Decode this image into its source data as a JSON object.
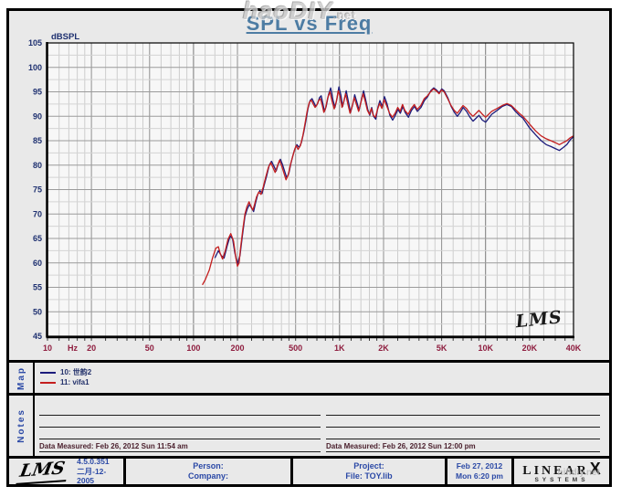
{
  "watermark_top": {
    "text": "haoDIY",
    "suffix": ".net"
  },
  "title": "SPL vs Freq",
  "chart_data": {
    "type": "line",
    "title": "SPL vs Freq",
    "ylabel": "dBSPL",
    "xunit": "Hz",
    "xscale": "log",
    "xlim": [
      10,
      40000
    ],
    "ylim": [
      45,
      105
    ],
    "y_major_step": 5,
    "y_minor_step": 2.5,
    "grid": "on",
    "legend_position": "map-panel-below",
    "plot_signature": "LMS",
    "xticks": [
      {
        "f": 10,
        "label": "10"
      },
      {
        "f": 20,
        "label": "20"
      },
      {
        "f": 50,
        "label": "50"
      },
      {
        "f": 100,
        "label": "100"
      },
      {
        "f": 200,
        "label": "200"
      },
      {
        "f": 500,
        "label": "500"
      },
      {
        "f": 1000,
        "label": "1K"
      },
      {
        "f": 2000,
        "label": "2K"
      },
      {
        "f": 5000,
        "label": "5K"
      },
      {
        "f": 10000,
        "label": "10K"
      },
      {
        "f": 20000,
        "label": "20K"
      },
      {
        "f": 40000,
        "label": "40K"
      }
    ],
    "series": [
      {
        "name": "10: 世韵2",
        "color": "#1c1c7c",
        "points": [
          [
            140,
            61
          ],
          [
            148,
            62.5
          ],
          [
            155,
            61.5
          ],
          [
            162,
            61
          ],
          [
            170,
            63.5
          ],
          [
            178,
            65.5
          ],
          [
            185,
            65
          ],
          [
            192,
            62
          ],
          [
            200,
            59.8
          ],
          [
            208,
            61.5
          ],
          [
            216,
            65.5
          ],
          [
            225,
            69.5
          ],
          [
            233,
            71
          ],
          [
            242,
            72
          ],
          [
            250,
            71.2
          ],
          [
            258,
            70.5
          ],
          [
            266,
            72.3
          ],
          [
            275,
            74
          ],
          [
            285,
            74.8
          ],
          [
            295,
            74.2
          ],
          [
            305,
            76
          ],
          [
            318,
            78
          ],
          [
            330,
            80
          ],
          [
            342,
            80.8
          ],
          [
            355,
            79.8
          ],
          [
            368,
            78.8
          ],
          [
            380,
            80.2
          ],
          [
            393,
            81.2
          ],
          [
            406,
            80.2
          ],
          [
            420,
            78.8
          ],
          [
            435,
            77.4
          ],
          [
            450,
            78.4
          ],
          [
            465,
            80.4
          ],
          [
            480,
            82
          ],
          [
            495,
            83.4
          ],
          [
            510,
            84.2
          ],
          [
            528,
            83.6
          ],
          [
            548,
            84.6
          ],
          [
            568,
            86.6
          ],
          [
            588,
            89
          ],
          [
            608,
            91.6
          ],
          [
            628,
            93.2
          ],
          [
            648,
            93.6
          ],
          [
            668,
            92.8
          ],
          [
            688,
            92
          ],
          [
            708,
            92.6
          ],
          [
            728,
            93.8
          ],
          [
            748,
            94.2
          ],
          [
            768,
            92.6
          ],
          [
            788,
            91
          ],
          [
            810,
            92
          ],
          [
            840,
            94.4
          ],
          [
            870,
            95.8
          ],
          [
            900,
            93.4
          ],
          [
            930,
            91.8
          ],
          [
            960,
            93.6
          ],
          [
            990,
            96
          ],
          [
            1020,
            94.4
          ],
          [
            1050,
            92
          ],
          [
            1080,
            93.6
          ],
          [
            1110,
            95.2
          ],
          [
            1150,
            93
          ],
          [
            1190,
            90.8
          ],
          [
            1230,
            92.4
          ],
          [
            1270,
            94.4
          ],
          [
            1310,
            93
          ],
          [
            1360,
            91.2
          ],
          [
            1410,
            93.4
          ],
          [
            1460,
            95.2
          ],
          [
            1510,
            93.4
          ],
          [
            1560,
            91.4
          ],
          [
            1610,
            90.2
          ],
          [
            1660,
            91.8
          ],
          [
            1710,
            90
          ],
          [
            1770,
            89.4
          ],
          [
            1830,
            91.8
          ],
          [
            1890,
            93.2
          ],
          [
            1960,
            92
          ],
          [
            2030,
            94
          ],
          [
            2110,
            92.6
          ],
          [
            2210,
            90.2
          ],
          [
            2310,
            89.2
          ],
          [
            2410,
            90.2
          ],
          [
            2510,
            91.4
          ],
          [
            2610,
            90.6
          ],
          [
            2710,
            92
          ],
          [
            2810,
            90.8
          ],
          [
            2960,
            89.8
          ],
          [
            3110,
            91.2
          ],
          [
            3260,
            92
          ],
          [
            3410,
            91
          ],
          [
            3610,
            91.8
          ],
          [
            3810,
            93.2
          ],
          [
            4010,
            94
          ],
          [
            4210,
            95.2
          ],
          [
            4410,
            95.8
          ],
          [
            4610,
            95.4
          ],
          [
            4810,
            94.8
          ],
          [
            5010,
            95.6
          ],
          [
            5210,
            95.2
          ],
          [
            5510,
            93.8
          ],
          [
            5810,
            92
          ],
          [
            6110,
            90.8
          ],
          [
            6410,
            90
          ],
          [
            6710,
            90.8
          ],
          [
            7010,
            91.8
          ],
          [
            7410,
            91
          ],
          [
            7810,
            89.8
          ],
          [
            8210,
            89
          ],
          [
            8610,
            89.6
          ],
          [
            9010,
            90.2
          ],
          [
            9510,
            89.2
          ],
          [
            10010,
            88.8
          ],
          [
            10510,
            89.6
          ],
          [
            11010,
            90.4
          ],
          [
            12010,
            91.2
          ],
          [
            13010,
            92
          ],
          [
            14010,
            92.4
          ],
          [
            15010,
            92
          ],
          [
            16010,
            91
          ],
          [
            17010,
            90.2
          ],
          [
            18010,
            89.6
          ],
          [
            19010,
            88.6
          ],
          [
            20010,
            87.6
          ],
          [
            22010,
            86.2
          ],
          [
            24010,
            85
          ],
          [
            26010,
            84.2
          ],
          [
            28010,
            83.8
          ],
          [
            30010,
            83.4
          ],
          [
            32010,
            83
          ],
          [
            34010,
            83.6
          ],
          [
            36010,
            84.2
          ],
          [
            38010,
            85.2
          ],
          [
            40000,
            85.8
          ]
        ]
      },
      {
        "name": "11: vifa1",
        "color": "#c41e1e",
        "points": [
          [
            115,
            55.5
          ],
          [
            120,
            56.5
          ],
          [
            128,
            58.5
          ],
          [
            135,
            61
          ],
          [
            142,
            63
          ],
          [
            148,
            63.3
          ],
          [
            152,
            62
          ],
          [
            158,
            60.8
          ],
          [
            165,
            62.5
          ],
          [
            172,
            64.8
          ],
          [
            180,
            66
          ],
          [
            188,
            64.5
          ],
          [
            195,
            61
          ],
          [
            200,
            59.3
          ],
          [
            205,
            60
          ],
          [
            210,
            63
          ],
          [
            218,
            67
          ],
          [
            225,
            70
          ],
          [
            232,
            71.5
          ],
          [
            240,
            72.5
          ],
          [
            248,
            71.5
          ],
          [
            255,
            70.8
          ],
          [
            262,
            72
          ],
          [
            270,
            73.5
          ],
          [
            280,
            74.5
          ],
          [
            290,
            74
          ],
          [
            300,
            75.5
          ],
          [
            312,
            77.5
          ],
          [
            325,
            79.5
          ],
          [
            338,
            80.5
          ],
          [
            350,
            79.5
          ],
          [
            362,
            78.5
          ],
          [
            375,
            79.8
          ],
          [
            388,
            81
          ],
          [
            400,
            80
          ],
          [
            415,
            78.5
          ],
          [
            430,
            77
          ],
          [
            445,
            78
          ],
          [
            460,
            80
          ],
          [
            475,
            81.5
          ],
          [
            490,
            83
          ],
          [
            505,
            84
          ],
          [
            520,
            83.2
          ],
          [
            540,
            84
          ],
          [
            560,
            86
          ],
          [
            580,
            88.5
          ],
          [
            600,
            91
          ],
          [
            620,
            92.8
          ],
          [
            640,
            93.3
          ],
          [
            660,
            92.5
          ],
          [
            680,
            91.8
          ],
          [
            700,
            92.3
          ],
          [
            720,
            93.2
          ],
          [
            740,
            93.6
          ],
          [
            760,
            92.3
          ],
          [
            780,
            90.8
          ],
          [
            800,
            91.5
          ],
          [
            830,
            93.8
          ],
          [
            860,
            95
          ],
          [
            890,
            93
          ],
          [
            920,
            91.5
          ],
          [
            950,
            93
          ],
          [
            980,
            95.2
          ],
          [
            1010,
            94
          ],
          [
            1040,
            91.8
          ],
          [
            1070,
            93
          ],
          [
            1100,
            94.6
          ],
          [
            1140,
            92.5
          ],
          [
            1180,
            90.6
          ],
          [
            1220,
            92
          ],
          [
            1260,
            93.8
          ],
          [
            1300,
            92.6
          ],
          [
            1350,
            91
          ],
          [
            1400,
            92.8
          ],
          [
            1450,
            94.6
          ],
          [
            1500,
            93
          ],
          [
            1550,
            91.2
          ],
          [
            1600,
            90.4
          ],
          [
            1650,
            91.6
          ],
          [
            1700,
            90.2
          ],
          [
            1760,
            89.8
          ],
          [
            1820,
            91.4
          ],
          [
            1880,
            92.6
          ],
          [
            1950,
            91.6
          ],
          [
            2020,
            93.4
          ],
          [
            2100,
            92.2
          ],
          [
            2200,
            90.6
          ],
          [
            2300,
            89.8
          ],
          [
            2400,
            90.6
          ],
          [
            2500,
            91.8
          ],
          [
            2600,
            91
          ],
          [
            2700,
            92.4
          ],
          [
            2800,
            91.2
          ],
          [
            2950,
            90.4
          ],
          [
            3100,
            91.6
          ],
          [
            3250,
            92.4
          ],
          [
            3400,
            91.4
          ],
          [
            3600,
            92.2
          ],
          [
            3800,
            93.6
          ],
          [
            4000,
            94.2
          ],
          [
            4200,
            95
          ],
          [
            4400,
            95.6
          ],
          [
            4600,
            95.2
          ],
          [
            4800,
            94.6
          ],
          [
            5000,
            95.4
          ],
          [
            5200,
            95
          ],
          [
            5500,
            93.6
          ],
          [
            5800,
            92.2
          ],
          [
            6100,
            91.2
          ],
          [
            6400,
            90.6
          ],
          [
            6700,
            91.4
          ],
          [
            7000,
            92.2
          ],
          [
            7400,
            91.6
          ],
          [
            7800,
            90.6
          ],
          [
            8200,
            90
          ],
          [
            8600,
            90.6
          ],
          [
            9000,
            91.2
          ],
          [
            9500,
            90.4
          ],
          [
            10000,
            89.8
          ],
          [
            10500,
            90.4
          ],
          [
            11000,
            91
          ],
          [
            12000,
            91.6
          ],
          [
            13000,
            92.2
          ],
          [
            14000,
            92.6
          ],
          [
            15000,
            92.2
          ],
          [
            16000,
            91.4
          ],
          [
            17000,
            90.6
          ],
          [
            18000,
            90
          ],
          [
            19000,
            89.2
          ],
          [
            20000,
            88.4
          ],
          [
            22000,
            87
          ],
          [
            24000,
            86
          ],
          [
            26000,
            85.4
          ],
          [
            28000,
            85
          ],
          [
            30000,
            84.6
          ],
          [
            32000,
            84.2
          ],
          [
            34000,
            84.6
          ],
          [
            36000,
            85
          ],
          [
            38000,
            85.6
          ],
          [
            40000,
            86
          ]
        ]
      }
    ]
  },
  "map_section": {
    "label": "Map"
  },
  "notes_section": {
    "label": "Notes",
    "left_note": "Data Measured: Feb 26, 2012  Sun 11:54 am",
    "right_note": "Data Measured: Feb 26, 2012  Sun 12:00 pm"
  },
  "footer": {
    "lms_logo": "LMS",
    "version": "4.5.0.351",
    "version_date": "二月-12-2005",
    "person_label": "Person:",
    "company_label": "Company:",
    "project_label": "Project:",
    "file_label": "File: TOY.lib",
    "date": "Feb 27, 2012",
    "time": "Mon  6:20 pm",
    "brand": {
      "linear": "LINEAR",
      "x": "X",
      "systems": "SYSTEMS",
      "watermark": "hifidiy.net"
    }
  }
}
